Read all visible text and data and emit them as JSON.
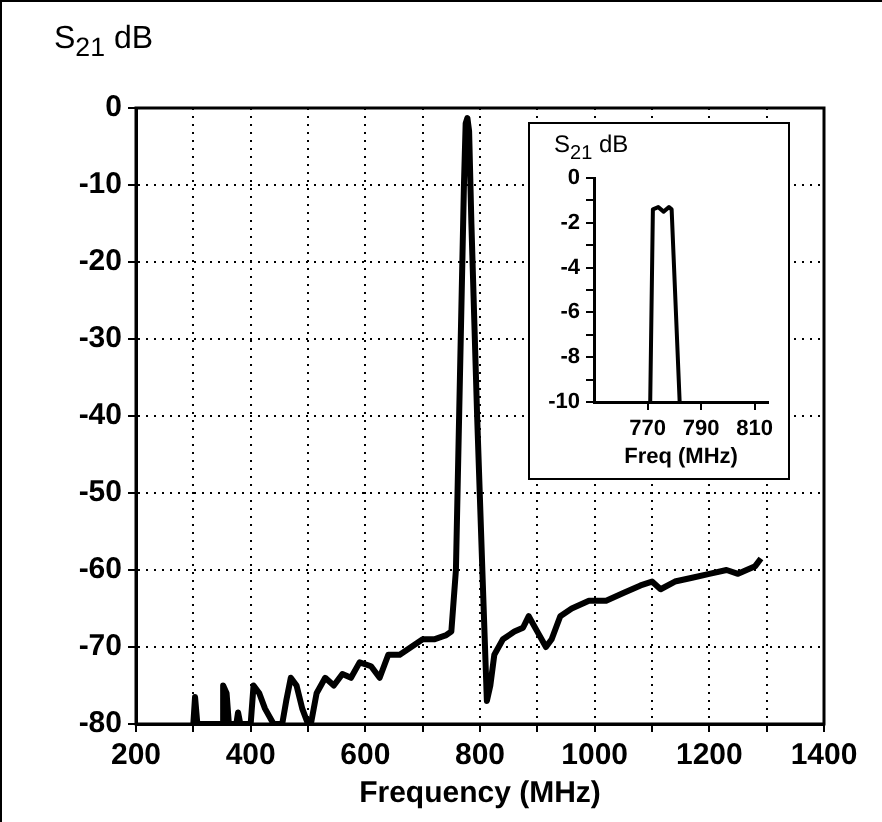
{
  "chart_data": [
    {
      "type": "line",
      "ylabel": "S$_{21}$ dB",
      "xlabel": "Frequency (MHz)",
      "xlim": [
        200,
        1400
      ],
      "xticks": [
        200,
        {
          "value": 300,
          "label": null
        },
        400,
        {
          "value": 500,
          "label": null
        },
        600,
        {
          "value": 700,
          "label": null
        },
        800,
        {
          "value": 900,
          "label": null
        },
        1000,
        {
          "value": 1100,
          "label": null
        },
        1200,
        {
          "value": 1300,
          "label": null
        },
        1400
      ],
      "ylim": [
        -80,
        0
      ],
      "yticks": [
        -80,
        -70,
        -60,
        -50,
        -40,
        -30,
        -20,
        -10,
        0
      ],
      "grid": true,
      "line_style": "solid",
      "marker": "none",
      "legend": false,
      "x": [
        300,
        303,
        307,
        350,
        352,
        358,
        362,
        375,
        378,
        382,
        400,
        405,
        415,
        425,
        440,
        455,
        462,
        470,
        480,
        490,
        500,
        505,
        515,
        530,
        545,
        560,
        575,
        590,
        610,
        625,
        640,
        660,
        680,
        700,
        720,
        740,
        750,
        758,
        765,
        772,
        775,
        778,
        781,
        785,
        795,
        805,
        812,
        818,
        825,
        840,
        860,
        875,
        885,
        900,
        915,
        925,
        940,
        960,
        990,
        1020,
        1050,
        1080,
        1100,
        1115,
        1140,
        1170,
        1200,
        1230,
        1250,
        1265,
        1280,
        1290
      ],
      "series": [
        {
          "color": "#000000",
          "values": [
            -80,
            -76.5,
            -80,
            -80,
            -75,
            -76,
            -80,
            -80,
            -78.5,
            -80,
            -80,
            -75,
            -76,
            -78,
            -80,
            -80,
            -77,
            -74,
            -75,
            -78,
            -80,
            -80,
            -76,
            -74,
            -75,
            -73.5,
            -74,
            -72,
            -72.5,
            -74,
            -71,
            -71,
            -70,
            -69,
            -69,
            -68.5,
            -68,
            -60,
            -35,
            -10,
            -2,
            -1.3,
            -3,
            -15,
            -40,
            -62,
            -77,
            -75,
            -71,
            -69,
            -68,
            -67.5,
            -66,
            -68,
            -70,
            -69,
            -66,
            -65,
            -64,
            -64,
            -63,
            -62,
            -61.5,
            -62.5,
            -61.5,
            -61,
            -60.5,
            -60,
            -60.5,
            -60,
            -59.5,
            -58.5
          ]
        }
      ]
    },
    {
      "type": "line",
      "ylabel": "S$_{21}$ dB",
      "xlabel": "Freq (MHz)",
      "xlim": [
        750,
        815
      ],
      "xticks": [
        770,
        790,
        810
      ],
      "ylim": [
        -10,
        0
      ],
      "yticks": [
        -10,
        {
          "value": -9,
          "label": null
        },
        -8,
        {
          "value": -7,
          "label": null
        },
        -6,
        {
          "value": -5,
          "label": null
        },
        -4,
        {
          "value": -3,
          "label": null
        },
        -2,
        {
          "value": -1,
          "label": null
        },
        0
      ],
      "line_style": "solid",
      "marker": "none",
      "legend": false,
      "x": [
        771,
        772,
        774,
        776,
        778,
        779,
        782
      ],
      "series": [
        {
          "color": "#000000",
          "values": [
            -10,
            -1.4,
            -1.3,
            -1.5,
            -1.3,
            -1.4,
            -10
          ]
        }
      ]
    }
  ]
}
